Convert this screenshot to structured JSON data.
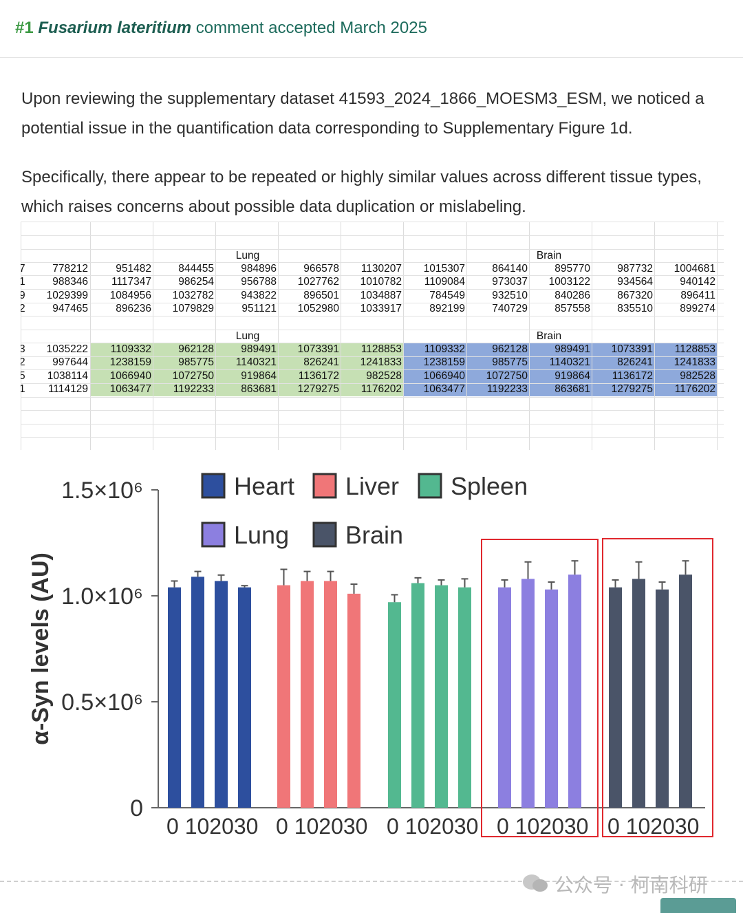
{
  "header": {
    "number": "#1",
    "species": "Fusarium lateritium",
    "status": "comment accepted March 2025",
    "colors": {
      "number": "#3d9a44",
      "text": "#1d6b5c"
    }
  },
  "body": {
    "paragraph_1": "Upon reviewing the supplementary dataset 41593_2024_1866_MOESM3_ESM, we noticed a potential issue in the quantification data corresponding to Supplementary Figure 1d.",
    "paragraph_2": "Specifically, there appear to be repeated or highly similar values across different tissue types, which raises concerns about possible data duplication or mislabeling."
  },
  "spreadsheet": {
    "top_block": {
      "group_labels": [
        "Lung",
        "Brain"
      ],
      "first_col_fragments": [
        "7",
        "1",
        "9",
        "2"
      ],
      "rows": [
        [
          "778212",
          "951482",
          "844455",
          "984896",
          "966578",
          "1130207",
          "1015307",
          "864140",
          "895770",
          "987732",
          "1004681"
        ],
        [
          "988346",
          "1117347",
          "986254",
          "956788",
          "1027762",
          "1010782",
          "1109084",
          "973037",
          "1003122",
          "934564",
          "940142"
        ],
        [
          "1029399",
          "1084956",
          "1032782",
          "943822",
          "896501",
          "1034887",
          "784549",
          "932510",
          "840286",
          "867320",
          "896411"
        ],
        [
          "947465",
          "896236",
          "1079829",
          "951121",
          "1052980",
          "1033917",
          "892199",
          "740729",
          "857558",
          "835510",
          "899274"
        ]
      ]
    },
    "bottom_block": {
      "group_labels": [
        "Lung",
        "Brain"
      ],
      "first_col_fragments": [
        "3",
        "2",
        "5",
        "1"
      ],
      "rows": [
        [
          "1035222",
          "1109332",
          "962128",
          "989491",
          "1073391",
          "1128853",
          "1109332",
          "962128",
          "989491",
          "1073391",
          "1128853"
        ],
        [
          "997644",
          "1238159",
          "985775",
          "1140321",
          "826241",
          "1241833",
          "1238159",
          "985775",
          "1140321",
          "826241",
          "1241833"
        ],
        [
          "1038114",
          "1066940",
          "1072750",
          "919864",
          "1136172",
          "982528",
          "1066940",
          "1072750",
          "919864",
          "1136172",
          "982528"
        ],
        [
          "1114129",
          "1063477",
          "1192233",
          "863681",
          "1279275",
          "1176202",
          "1063477",
          "1192233",
          "863681",
          "1279275",
          "1176202"
        ]
      ],
      "highlight_colors": {
        "lung": "#c6e0b4",
        "brain": "#8ea9db"
      }
    }
  },
  "chart_data": {
    "type": "bar",
    "ylabel": "α-Syn levels (AU)",
    "yticks": [
      "0",
      "0.5×10⁶",
      "1.0×10⁶",
      "1.5×10⁶"
    ],
    "ylim": [
      0,
      1500000
    ],
    "categories": [
      "0",
      "10",
      "20",
      "30"
    ],
    "xtick_text": "0 102030",
    "legend": "top",
    "series": [
      {
        "name": "Heart",
        "color": "#2d4f9e",
        "values": [
          1040000,
          1090000,
          1070000,
          1040000
        ],
        "errors": [
          30000,
          25000,
          28000,
          8000
        ]
      },
      {
        "name": "Liver",
        "color": "#f07678",
        "values": [
          1050000,
          1070000,
          1070000,
          1010000
        ],
        "errors": [
          75000,
          45000,
          45000,
          45000
        ]
      },
      {
        "name": "Spleen",
        "color": "#53b890",
        "values": [
          970000,
          1060000,
          1050000,
          1040000
        ],
        "errors": [
          35000,
          25000,
          25000,
          40000
        ]
      },
      {
        "name": "Lung",
        "color": "#8c7fe0",
        "values": [
          1040000,
          1080000,
          1030000,
          1100000
        ],
        "errors": [
          35000,
          80000,
          35000,
          65000
        ]
      },
      {
        "name": "Brain",
        "color": "#4a5468",
        "values": [
          1040000,
          1080000,
          1030000,
          1100000
        ],
        "errors": [
          35000,
          80000,
          35000,
          65000
        ]
      }
    ],
    "highlighted_groups": [
      "Lung",
      "Brain"
    ],
    "highlight_color": "#e0282e"
  },
  "footer": {
    "watermark": "公众号 · 柯南科研"
  }
}
